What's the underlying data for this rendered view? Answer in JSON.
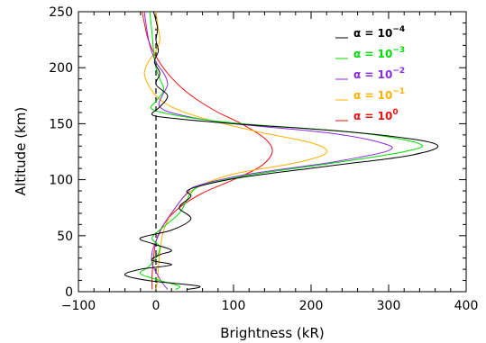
{
  "chart_data": {
    "type": "line",
    "title": "",
    "xlabel": "Brightness (kR)",
    "ylabel": "Altitude (km)",
    "xlim": [
      -100,
      400
    ],
    "ylim": [
      0,
      250
    ],
    "xticks": [
      -100,
      0,
      100,
      200,
      300,
      400
    ],
    "yticks": [
      0,
      50,
      100,
      150,
      200,
      250
    ],
    "xtick_labels": [
      "−100",
      "0",
      "100",
      "200",
      "300",
      "400"
    ],
    "ytick_labels": [
      "0",
      "50",
      "100",
      "150",
      "200",
      "250"
    ],
    "grid": false,
    "legend_position": "top-right",
    "reference_line": {
      "x": 0,
      "style": "dashed"
    },
    "series": [
      {
        "name": "α = 10−4",
        "label_text": "α = 10",
        "label_exp": "−4",
        "color": "#000000",
        "points": [
          [
            40,
            2
          ],
          [
            55,
            5
          ],
          [
            -10,
            10
          ],
          [
            -40,
            15
          ],
          [
            -20,
            20
          ],
          [
            20,
            24
          ],
          [
            -5,
            28
          ],
          [
            5,
            33
          ],
          [
            20,
            37
          ],
          [
            -5,
            43
          ],
          [
            -20,
            48
          ],
          [
            20,
            55
          ],
          [
            45,
            65
          ],
          [
            30,
            75
          ],
          [
            45,
            85
          ],
          [
            40,
            90
          ],
          [
            60,
            95
          ],
          [
            110,
            102
          ],
          [
            220,
            112
          ],
          [
            330,
            122
          ],
          [
            360,
            132
          ],
          [
            260,
            142
          ],
          [
            100,
            150
          ],
          [
            20,
            155
          ],
          [
            -5,
            158
          ],
          [
            5,
            165
          ],
          [
            15,
            175
          ],
          [
            0,
            185
          ],
          [
            5,
            195
          ],
          [
            -2,
            205
          ],
          [
            3,
            215
          ],
          [
            0,
            225
          ],
          [
            2,
            235
          ],
          [
            -3,
            250
          ]
        ]
      },
      {
        "name": "α = 10−3",
        "label_text": "α = 10",
        "label_exp": "−3",
        "color": "#00dd00",
        "points": [
          [
            25,
            2
          ],
          [
            30,
            5
          ],
          [
            5,
            10
          ],
          [
            -20,
            16
          ],
          [
            -10,
            22
          ],
          [
            0,
            30
          ],
          [
            5,
            40
          ],
          [
            -5,
            48
          ],
          [
            10,
            58
          ],
          [
            30,
            70
          ],
          [
            40,
            82
          ],
          [
            45,
            88
          ],
          [
            60,
            95
          ],
          [
            120,
            104
          ],
          [
            230,
            115
          ],
          [
            320,
            125
          ],
          [
            340,
            132
          ],
          [
            260,
            142
          ],
          [
            110,
            150
          ],
          [
            30,
            157
          ],
          [
            -5,
            163
          ],
          [
            0,
            170
          ],
          [
            10,
            180
          ],
          [
            5,
            190
          ],
          [
            0,
            200
          ],
          [
            -3,
            215
          ],
          [
            -5,
            230
          ],
          [
            -8,
            250
          ]
        ]
      },
      {
        "name": "α = 10−2",
        "label_text": "α = 10",
        "label_exp": "−2",
        "color": "#8a2be2",
        "points": [
          [
            15,
            2
          ],
          [
            8,
            8
          ],
          [
            2,
            15
          ],
          [
            -5,
            25
          ],
          [
            -5,
            35
          ],
          [
            0,
            45
          ],
          [
            10,
            60
          ],
          [
            25,
            75
          ],
          [
            40,
            88
          ],
          [
            55,
            95
          ],
          [
            120,
            105
          ],
          [
            230,
            116
          ],
          [
            300,
            126
          ],
          [
            290,
            133
          ],
          [
            220,
            142
          ],
          [
            100,
            150
          ],
          [
            30,
            158
          ],
          [
            5,
            165
          ],
          [
            8,
            175
          ],
          [
            15,
            185
          ],
          [
            10,
            195
          ],
          [
            0,
            205
          ],
          [
            -8,
            220
          ],
          [
            -12,
            235
          ],
          [
            -15,
            250
          ]
        ]
      },
      {
        "name": "α = 10−1",
        "label_text": "α = 10",
        "label_exp": "−1",
        "color": "#ffb000",
        "points": [
          [
            0,
            2
          ],
          [
            2,
            10
          ],
          [
            3,
            20
          ],
          [
            5,
            35
          ],
          [
            10,
            55
          ],
          [
            25,
            75
          ],
          [
            50,
            92
          ],
          [
            100,
            105
          ],
          [
            180,
            115
          ],
          [
            220,
            124
          ],
          [
            200,
            133
          ],
          [
            130,
            143
          ],
          [
            60,
            155
          ],
          [
            20,
            165
          ],
          [
            0,
            175
          ],
          [
            -10,
            185
          ],
          [
            -15,
            195
          ],
          [
            -10,
            205
          ],
          [
            0,
            215
          ],
          [
            5,
            225
          ],
          [
            3,
            235
          ],
          [
            0,
            250
          ]
        ]
      },
      {
        "name": "α = 10⁰",
        "label_text": "α = 10",
        "label_exp": "0",
        "color": "#ee1111",
        "points": [
          [
            -5,
            2
          ],
          [
            -5,
            15
          ],
          [
            -3,
            30
          ],
          [
            0,
            45
          ],
          [
            10,
            60
          ],
          [
            30,
            75
          ],
          [
            60,
            88
          ],
          [
            100,
            100
          ],
          [
            135,
            112
          ],
          [
            150,
            125
          ],
          [
            140,
            137
          ],
          [
            110,
            150
          ],
          [
            75,
            162
          ],
          [
            40,
            178
          ],
          [
            15,
            195
          ],
          [
            0,
            210
          ],
          [
            -10,
            225
          ],
          [
            -15,
            240
          ],
          [
            -18,
            250
          ]
        ]
      }
    ]
  }
}
